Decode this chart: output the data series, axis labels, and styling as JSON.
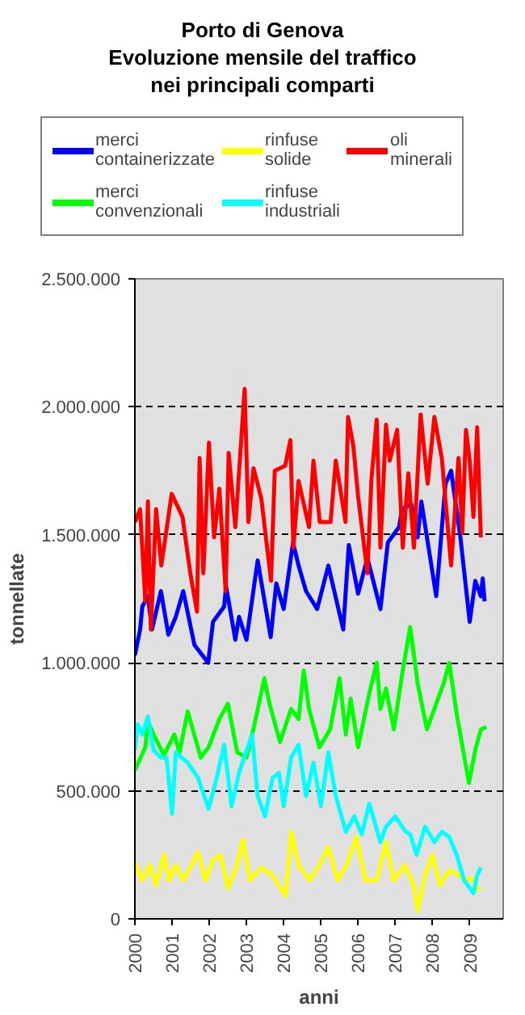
{
  "chart_data": {
    "type": "line",
    "title": "Porto di Genova\nEvoluzione mensile del traffico\nnei principali comparti",
    "xlabel": "anni",
    "ylabel": "tonnellate",
    "xlim": [
      2000,
      2009.9
    ],
    "xticks": [
      2000,
      2001,
      2002,
      2003,
      2004,
      2005,
      2006,
      2007,
      2008,
      2009
    ],
    "ylim": [
      0,
      2500000
    ],
    "yticks": [
      {
        "value": 0,
        "label": "0"
      },
      {
        "value": 500000,
        "label": "500.000"
      },
      {
        "value": 1000000,
        "label": "1.000.000"
      },
      {
        "value": 1500000,
        "label": "1.500.000"
      },
      {
        "value": 2000000,
        "label": "2.000.000"
      },
      {
        "value": 2500000,
        "label": "2.500.000"
      }
    ],
    "grid": "y",
    "legend": "top",
    "marker": "none",
    "line_style": "solid",
    "series": [
      {
        "name": "merci containerizzate",
        "color": "#0000ff",
        "x": [
          2000.0,
          2000.14,
          2000.2,
          2000.35,
          2000.46,
          2000.7,
          2000.9,
          2001.1,
          2001.3,
          2001.6,
          2001.97,
          2002.1,
          2002.4,
          2002.45,
          2002.7,
          2002.8,
          2003.0,
          2003.3,
          2003.65,
          2003.8,
          2004.0,
          2004.25,
          2004.4,
          2004.6,
          2004.9,
          2005.2,
          2005.6,
          2005.75,
          2006.0,
          2006.25,
          2006.6,
          2006.8,
          2007.1,
          2007.18,
          2007.43,
          2007.6,
          2007.7,
          2008.1,
          2008.35,
          2008.5,
          2008.75,
          2009.0,
          2009.15,
          2009.3,
          2009.35,
          2009.4
        ],
        "values": [
          1030000,
          1130000,
          1220000,
          1260000,
          1130000,
          1280000,
          1110000,
          1180000,
          1280000,
          1070000,
          1000000,
          1160000,
          1220000,
          1300000,
          1090000,
          1180000,
          1090000,
          1400000,
          1100000,
          1310000,
          1210000,
          1470000,
          1380000,
          1280000,
          1210000,
          1380000,
          1130000,
          1460000,
          1270000,
          1410000,
          1210000,
          1470000,
          1530000,
          1600000,
          1620000,
          1490000,
          1630000,
          1260000,
          1700000,
          1750000,
          1490000,
          1160000,
          1320000,
          1260000,
          1330000,
          1240000
        ]
      },
      {
        "name": "rinfuse solide",
        "color": "#ffff00",
        "x": [
          2000.0,
          2000.2,
          2000.4,
          2000.57,
          2000.78,
          2000.92,
          2001.1,
          2001.3,
          2001.45,
          2001.7,
          2001.9,
          2002.1,
          2002.3,
          2002.5,
          2002.75,
          2002.9,
          2003.1,
          2003.4,
          2003.7,
          2004.05,
          2004.2,
          2004.4,
          2004.6,
          2004.7,
          2004.96,
          2005.2,
          2005.45,
          2005.7,
          2005.95,
          2006.2,
          2006.5,
          2006.75,
          2006.96,
          2007.25,
          2007.5,
          2007.6,
          2007.8,
          2008.0,
          2008.2,
          2008.45,
          2008.7,
          2008.9,
          2009.05,
          2009.25
        ],
        "values": [
          220000,
          150000,
          210000,
          130000,
          250000,
          150000,
          210000,
          150000,
          190000,
          260000,
          150000,
          230000,
          250000,
          120000,
          210000,
          310000,
          150000,
          200000,
          170000,
          90000,
          340000,
          210000,
          170000,
          150000,
          210000,
          280000,
          150000,
          210000,
          320000,
          150000,
          150000,
          300000,
          150000,
          210000,
          130000,
          30000,
          170000,
          250000,
          130000,
          190000,
          170000,
          150000,
          160000,
          110000
        ]
      },
      {
        "name": "oli minerali",
        "color": "#ff0000",
        "x": [
          2000.0,
          2000.14,
          2000.28,
          2000.35,
          2000.43,
          2000.57,
          2000.71,
          2000.99,
          2001.28,
          2001.49,
          2001.67,
          2001.74,
          2001.84,
          2001.99,
          2002.13,
          2002.27,
          2002.44,
          2002.52,
          2002.7,
          2002.95,
          2003.05,
          2003.19,
          2003.4,
          2003.66,
          2003.76,
          2004.04,
          2004.18,
          2004.26,
          2004.4,
          2004.68,
          2004.8,
          2004.97,
          2005.26,
          2005.4,
          2005.66,
          2005.73,
          2005.87,
          2006.0,
          2006.25,
          2006.36,
          2006.5,
          2006.6,
          2006.75,
          2006.85,
          2007.05,
          2007.2,
          2007.35,
          2007.5,
          2007.68,
          2007.87,
          2008.05,
          2008.25,
          2008.5,
          2008.7,
          2008.8,
          2008.9,
          2009.0,
          2009.1,
          2009.2,
          2009.3
        ],
        "values": [
          1550000,
          1600000,
          1240000,
          1630000,
          1130000,
          1600000,
          1380000,
          1660000,
          1570000,
          1350000,
          1200000,
          1800000,
          1350000,
          1860000,
          1490000,
          1680000,
          1280000,
          1820000,
          1530000,
          2070000,
          1550000,
          1760000,
          1640000,
          1320000,
          1750000,
          1770000,
          1870000,
          1450000,
          1710000,
          1530000,
          1790000,
          1550000,
          1550000,
          1790000,
          1550000,
          1960000,
          1850000,
          1650000,
          1350000,
          1720000,
          1950000,
          1450000,
          1930000,
          1790000,
          1910000,
          1450000,
          1740000,
          1450000,
          1970000,
          1700000,
          1960000,
          1800000,
          1380000,
          1800000,
          1510000,
          1910000,
          1790000,
          1570000,
          1920000,
          1490000
        ]
      },
      {
        "name": "merci convenzionali",
        "color": "#00ff00",
        "x": [
          2000.0,
          2000.28,
          2000.35,
          2000.57,
          2000.78,
          2001.06,
          2001.2,
          2001.42,
          2001.77,
          2001.98,
          2002.27,
          2002.5,
          2002.75,
          2003.0,
          2003.2,
          2003.48,
          2003.62,
          2003.9,
          2004.2,
          2004.4,
          2004.54,
          2004.68,
          2004.96,
          2005.25,
          2005.5,
          2005.67,
          2005.8,
          2006.0,
          2006.3,
          2006.5,
          2006.6,
          2006.75,
          2006.96,
          2007.2,
          2007.4,
          2007.6,
          2007.85,
          2008.1,
          2008.3,
          2008.45,
          2008.65,
          2008.98,
          2009.15,
          2009.3,
          2009.45
        ],
        "values": [
          580000,
          670000,
          770000,
          700000,
          640000,
          720000,
          650000,
          810000,
          630000,
          670000,
          780000,
          840000,
          650000,
          630000,
          750000,
          940000,
          840000,
          690000,
          820000,
          780000,
          970000,
          820000,
          670000,
          740000,
          940000,
          720000,
          860000,
          670000,
          880000,
          1000000,
          820000,
          900000,
          740000,
          970000,
          1140000,
          920000,
          740000,
          840000,
          920000,
          1000000,
          800000,
          530000,
          660000,
          740000,
          750000
        ]
      },
      {
        "name": "rinfuse industriali",
        "color": "#00ffff",
        "x": [
          2000.0,
          2000.07,
          2000.2,
          2000.35,
          2000.5,
          2000.7,
          2000.85,
          2001.0,
          2001.1,
          2001.42,
          2001.7,
          2001.98,
          2002.2,
          2002.4,
          2002.6,
          2002.8,
          2003.15,
          2003.3,
          2003.5,
          2003.7,
          2003.87,
          2004.0,
          2004.2,
          2004.4,
          2004.6,
          2004.8,
          2005.0,
          2005.2,
          2005.4,
          2005.67,
          2005.9,
          2006.1,
          2006.3,
          2006.4,
          2006.6,
          2006.75,
          2007.0,
          2007.28,
          2007.4,
          2007.57,
          2007.8,
          2008.05,
          2008.25,
          2008.45,
          2008.65,
          2008.85,
          2009.1,
          2009.2,
          2009.3
        ],
        "values": [
          660000,
          760000,
          720000,
          790000,
          660000,
          630000,
          630000,
          410000,
          650000,
          610000,
          550000,
          430000,
          550000,
          680000,
          440000,
          570000,
          720000,
          480000,
          400000,
          550000,
          570000,
          440000,
          630000,
          680000,
          480000,
          610000,
          440000,
          650000,
          480000,
          340000,
          400000,
          330000,
          450000,
          400000,
          300000,
          360000,
          400000,
          340000,
          330000,
          250000,
          360000,
          300000,
          340000,
          320000,
          250000,
          150000,
          100000,
          170000,
          200000
        ]
      }
    ]
  }
}
